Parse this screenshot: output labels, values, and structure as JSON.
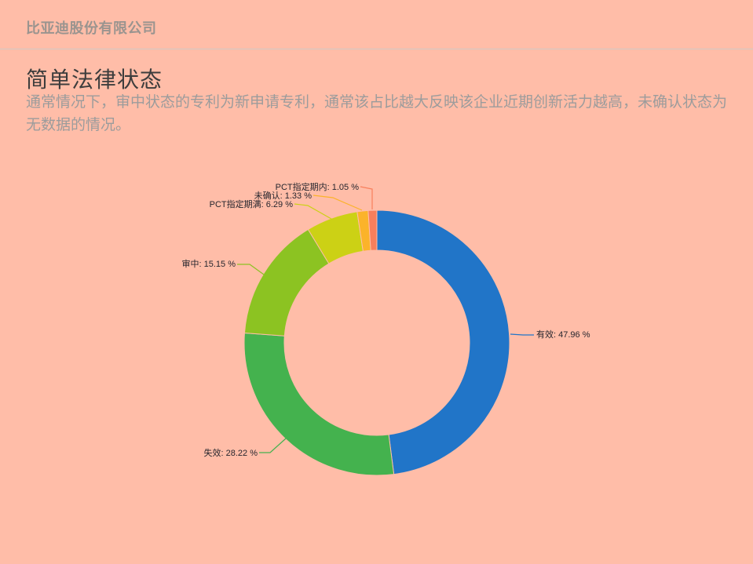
{
  "header": {
    "company": "比亚迪股份有限公司"
  },
  "section": {
    "title": "简单法律状态",
    "description": "通常情况下，审中状态的专利为新申请专利，通常该占比越大反映该企业近期创新活力越高，未确认状态为无数据的情况。"
  },
  "colors": {
    "background": "#ffbda8",
    "divider": "#cfcac6",
    "company_text": "#9a948f",
    "title_text": "#3d3d3d",
    "description_text": "#9c9c9c",
    "label_text": "#26262e"
  },
  "chart_data": {
    "type": "pie",
    "subtype": "donut",
    "title": "简单法律状态",
    "unit": "%",
    "start_angle_deg": 0,
    "direction": "clockwise",
    "inner_radius_ratio": 0.7,
    "legend": "none",
    "slices": [
      {
        "label": "有效",
        "value": 47.96,
        "display": "有效: 47.96 %",
        "color": "#2175c8"
      },
      {
        "label": "失效",
        "value": 28.22,
        "display": "失效: 28.22 %",
        "color": "#44b24e"
      },
      {
        "label": "审中",
        "value": 15.15,
        "display": "审中: 15.15 %",
        "color": "#8cc322"
      },
      {
        "label": "PCT指定期满",
        "value": 6.29,
        "display": "PCT指定期满: 6.29 %",
        "color": "#ccd115"
      },
      {
        "label": "未确认",
        "value": 1.33,
        "display": "未确认: 1.33 %",
        "color": "#fbb32a"
      },
      {
        "label": "PCT指定期内",
        "value": 1.05,
        "display": "PCT指定期内: 1.05 %",
        "color": "#f87f5c"
      }
    ]
  }
}
